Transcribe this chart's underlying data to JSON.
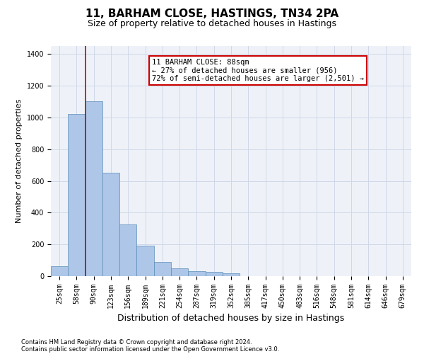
{
  "title": "11, BARHAM CLOSE, HASTINGS, TN34 2PA",
  "subtitle": "Size of property relative to detached houses in Hastings",
  "xlabel": "Distribution of detached houses by size in Hastings",
  "ylabel": "Number of detached properties",
  "footnote1": "Contains HM Land Registry data © Crown copyright and database right 2024.",
  "footnote2": "Contains public sector information licensed under the Open Government Licence v3.0.",
  "categories": [
    "25sqm",
    "58sqm",
    "90sqm",
    "123sqm",
    "156sqm",
    "189sqm",
    "221sqm",
    "254sqm",
    "287sqm",
    "319sqm",
    "352sqm",
    "385sqm",
    "417sqm",
    "450sqm",
    "483sqm",
    "516sqm",
    "548sqm",
    "581sqm",
    "614sqm",
    "646sqm",
    "679sqm"
  ],
  "values": [
    62,
    1020,
    1100,
    650,
    325,
    190,
    90,
    47,
    30,
    25,
    18,
    0,
    0,
    0,
    0,
    0,
    0,
    0,
    0,
    0,
    0
  ],
  "bar_color": "#aec6e8",
  "bar_edge_color": "#5b8db8",
  "property_line_color": "#cc0000",
  "annotation_text": "11 BARHAM CLOSE: 88sqm\n← 27% of detached houses are smaller (956)\n72% of semi-detached houses are larger (2,501) →",
  "annotation_box_color": "#cc0000",
  "ylim": [
    0,
    1450
  ],
  "yticks": [
    0,
    200,
    400,
    600,
    800,
    1000,
    1200,
    1400
  ],
  "grid_color": "#d0d8e8",
  "background_color": "#eef2f8",
  "title_fontsize": 11,
  "subtitle_fontsize": 9,
  "xlabel_fontsize": 9,
  "ylabel_fontsize": 8,
  "tick_fontsize": 7,
  "annotation_fontsize": 7.5,
  "footnote_fontsize": 6
}
